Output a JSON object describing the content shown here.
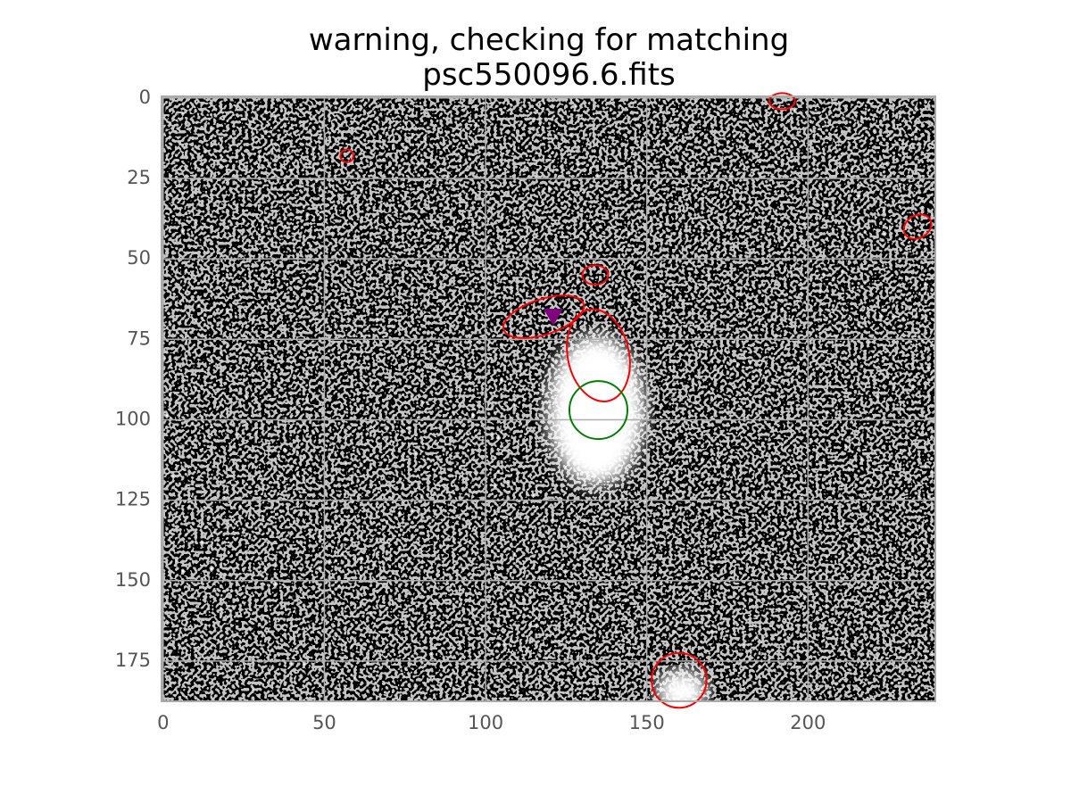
{
  "chart_data": {
    "type": "image",
    "title_lines": [
      "warning, checking for matching",
      "psc550096.6.fits"
    ],
    "xlim": [
      -0.5,
      239.5
    ],
    "ylim": [
      187.5,
      -0.5
    ],
    "xticks": [
      0,
      50,
      100,
      150,
      200
    ],
    "yticks": [
      0,
      25,
      50,
      75,
      100,
      125,
      150,
      175
    ],
    "grid": true,
    "ellipses": [
      {
        "x": 192,
        "y": 1,
        "width": 8,
        "height": 5,
        "angle": 0,
        "color": "#ff0000"
      },
      {
        "x": 57,
        "y": 18,
        "width": 4,
        "height": 4,
        "angle": 0,
        "color": "#ff0000"
      },
      {
        "x": 234,
        "y": 40,
        "width": 9,
        "height": 7,
        "angle": -30,
        "color": "#ff0000"
      },
      {
        "x": 134,
        "y": 55,
        "width": 8,
        "height": 6,
        "angle": 0,
        "color": "#ff0000"
      },
      {
        "x": 118,
        "y": 68,
        "width": 26,
        "height": 11,
        "angle": -18,
        "color": "#ff0000"
      },
      {
        "x": 135,
        "y": 80,
        "width": 19,
        "height": 29,
        "angle": -12,
        "color": "#ff0000"
      },
      {
        "x": 135,
        "y": 97,
        "width": 18,
        "height": 18,
        "angle": 0,
        "color": "#008000"
      },
      {
        "x": 160,
        "y": 181,
        "width": 17,
        "height": 17,
        "angle": 0,
        "color": "#ff0000"
      }
    ],
    "markers": [
      {
        "x": 121,
        "y": 68,
        "color": "#800080"
      }
    ]
  }
}
